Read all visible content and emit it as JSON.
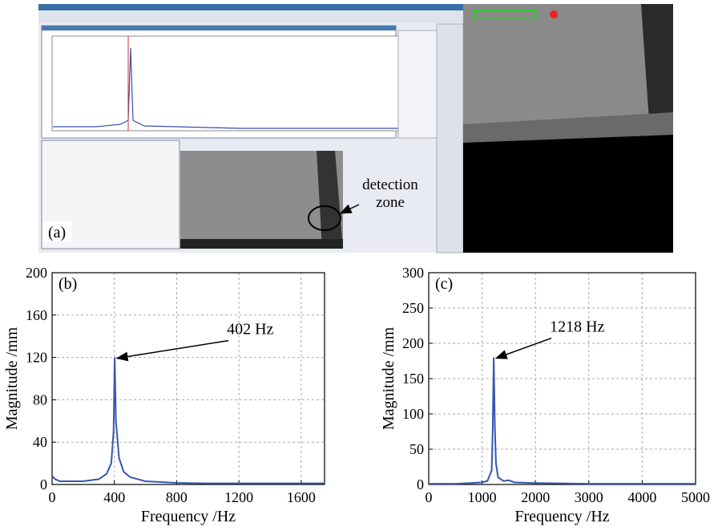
{
  "screenshot": {
    "panel_label": "(a)",
    "annotation": [
      "detection",
      "zone"
    ]
  },
  "chart_data": [
    {
      "type": "line",
      "panel_label": "(b)",
      "x_label": "Frequency /Hz",
      "y_label": "Magnitude /mm",
      "x": [
        0,
        20,
        50,
        100,
        200,
        300,
        350,
        380,
        395,
        402,
        410,
        430,
        460,
        500,
        600,
        800,
        1000,
        1400,
        1750
      ],
      "values": [
        8,
        5,
        3,
        3,
        3,
        5,
        10,
        20,
        50,
        120,
        60,
        25,
        12,
        7,
        3,
        1.5,
        1,
        1,
        1
      ],
      "color": "#3557b0",
      "xlim": [
        0,
        1750
      ],
      "xticks": [
        0,
        400,
        800,
        1200,
        1600
      ],
      "ylim": [
        0,
        200
      ],
      "yticks": [
        0,
        40,
        80,
        120,
        160,
        200
      ],
      "grid": true,
      "annotation": {
        "text": "402 Hz",
        "x": 402,
        "y": 120
      }
    },
    {
      "type": "line",
      "panel_label": "(c)",
      "x_label": "Frequency /Hz",
      "y_label": "Magnitude /mm",
      "x": [
        0,
        500,
        800,
        1000,
        1100,
        1180,
        1200,
        1218,
        1240,
        1260,
        1300,
        1400,
        1500,
        1600,
        2000,
        3000,
        4000,
        5000
      ],
      "values": [
        1,
        1,
        2,
        3,
        5,
        20,
        80,
        180,
        80,
        30,
        10,
        5,
        6,
        3,
        2,
        1,
        1,
        1
      ],
      "color": "#3557b0",
      "xlim": [
        0,
        5000
      ],
      "xticks": [
        0,
        1000,
        2000,
        3000,
        4000,
        5000
      ],
      "ylim": [
        0,
        300
      ],
      "yticks": [
        0,
        50,
        100,
        150,
        200,
        250,
        300
      ],
      "grid": true,
      "annotation": {
        "text": "1218 Hz",
        "x": 1218,
        "y": 180
      }
    }
  ]
}
